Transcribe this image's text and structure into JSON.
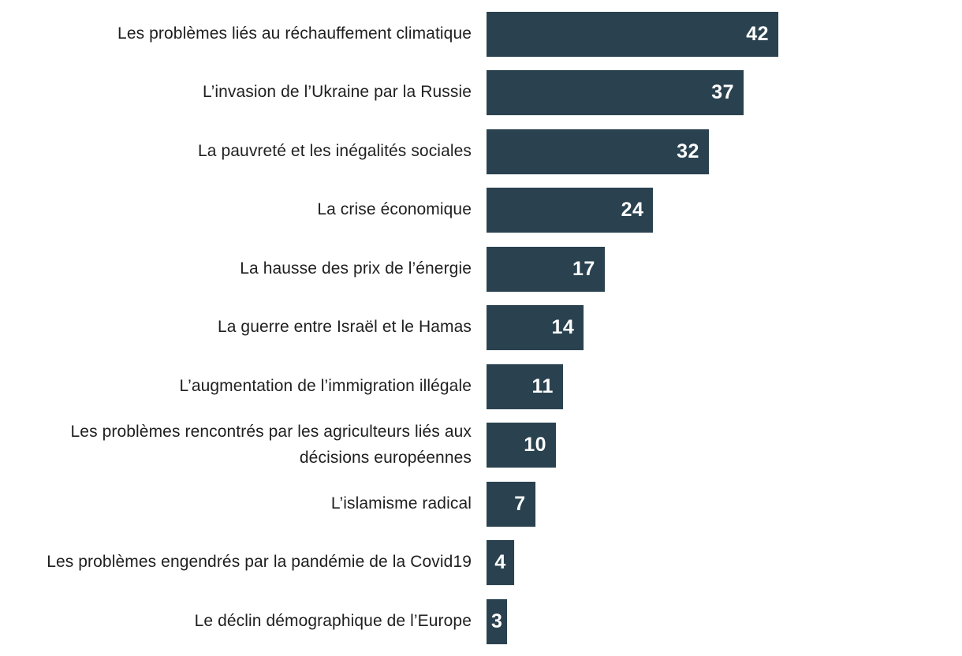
{
  "chart": {
    "bar_color": "#2a4250",
    "label_color": "#1f1f1f",
    "value_label_color": "#ffffff",
    "background_color": "#ffffff"
  },
  "chart_data": {
    "type": "bar",
    "orientation": "horizontal",
    "title": "",
    "xlabel": "",
    "ylabel": "",
    "xlim": [
      0,
      42
    ],
    "grid": false,
    "legend": false,
    "value_labels_position": "inside-end",
    "categories": [
      "Les problèmes liés au réchauffement climatique",
      "L’invasion de l’Ukraine par la Russie",
      "La pauvreté et les inégalités sociales",
      "La crise économique",
      "La hausse des prix de l’énergie",
      "La guerre entre Israël et le Hamas",
      "L’augmentation de l’immigration illégale",
      "Les problèmes rencontrés par les agriculteurs liés aux décisions européennes",
      "L’islamisme radical",
      "Les problèmes engendrés par la pandémie de la Covid19",
      "Le déclin démographique de l’Europe"
    ],
    "values": [
      42,
      37,
      32,
      24,
      17,
      14,
      11,
      10,
      7,
      4,
      3
    ]
  }
}
